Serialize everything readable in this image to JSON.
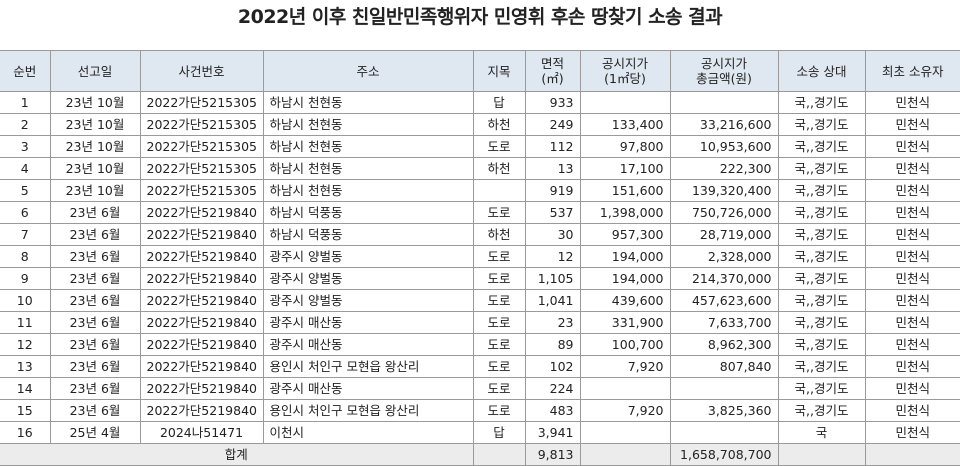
{
  "title": "2022년 이후 친일반민족행위자 민영휘 후손 땅찾기 소송 결과",
  "table": {
    "header": [
      [
        "순번"
      ],
      [
        "선고일"
      ],
      [
        "사건번호"
      ],
      [
        "주소"
      ],
      [
        "지목"
      ],
      [
        "면적",
        "(㎡)"
      ],
      [
        "공시지가",
        "(1㎡당)"
      ],
      [
        "공시지가",
        "총금액(원)"
      ],
      [
        "소송 상대"
      ],
      [
        "최초 소유자"
      ]
    ],
    "rows": [
      [
        "1",
        "23년 10월",
        "2022가단5215305",
        "하남시 천현동",
        "답",
        "933",
        null,
        null,
        "국,,경기도",
        "민천식"
      ],
      [
        "2",
        "23년 10월",
        "2022가단5215305",
        "하남시 천현동",
        "하천",
        "249",
        "133,400",
        "33,216,600",
        "국,,경기도",
        "민천식"
      ],
      [
        "3",
        "23년 10월",
        "2022가단5215305",
        "하남시 천현동",
        "도로",
        "112",
        "97,800",
        "10,953,600",
        "국,,경기도",
        "민천식"
      ],
      [
        "4",
        "23년 10월",
        "2022가단5215305",
        "하남시 천현동",
        "하천",
        "13",
        "17,100",
        "222,300",
        "국,,경기도",
        "민천식"
      ],
      [
        "5",
        "23년 10월",
        "2022가단5215305",
        "하남시 천현동",
        null,
        "919",
        "151,600",
        "139,320,400",
        "국,,경기도",
        "민천식"
      ],
      [
        "6",
        "23년 6월",
        "2022가단5219840",
        "하남시 덕풍동",
        "도로",
        "537",
        "1,398,000",
        "750,726,000",
        "국,,경기도",
        "민천식"
      ],
      [
        "7",
        "23년 6월",
        "2022가단5219840",
        "하남시 덕풍동",
        "하천",
        "30",
        "957,300",
        "28,719,000",
        "국,,경기도",
        "민천식"
      ],
      [
        "8",
        "23년 6월",
        "2022가단5219840",
        "광주시 양벌동",
        "도로",
        "12",
        "194,000",
        "2,328,000",
        "국,,경기도",
        "민천식"
      ],
      [
        "9",
        "23년 6월",
        "2022가단5219840",
        "광주시 양벌동",
        "도로",
        "1,105",
        "194,000",
        "214,370,000",
        "국,,경기도",
        "민천식"
      ],
      [
        "10",
        "23년 6월",
        "2022가단5219840",
        "광주시 양벌동",
        "도로",
        "1,041",
        "439,600",
        "457,623,600",
        "국,,경기도",
        "민천식"
      ],
      [
        "11",
        "23년 6월",
        "2022가단5219840",
        "광주시 매산동",
        "도로",
        "23",
        "331,900",
        "7,633,700",
        "국,,경기도",
        "민천식"
      ],
      [
        "12",
        "23년 6월",
        "2022가단5219840",
        "광주시 매산동",
        "도로",
        "89",
        "100,700",
        "8,962,300",
        "국,,경기도",
        "민천식"
      ],
      [
        "13",
        "23년 6월",
        "2022가단5219840",
        "용인시 처인구 모현읍 왕산리",
        "도로",
        "102",
        "7,920",
        "807,840",
        "국,,경기도",
        "민천식"
      ],
      [
        "14",
        "23년 6월",
        "2022가단5219840",
        "광주시 매산동",
        "도로",
        "224",
        null,
        null,
        "국,,경기도",
        "민천식"
      ],
      [
        "15",
        "23년 6월",
        "2022가단5219840",
        "용인시 처인구 모현읍 왕산리",
        "도로",
        "483",
        "7,920",
        "3,825,360",
        "국,,경기도",
        "민천식"
      ],
      [
        "16",
        "25년 4월",
        "2024나51471",
        "이천시",
        "답",
        "3,941",
        null,
        null,
        "국",
        "민천식"
      ]
    ],
    "total": {
      "label": "합계",
      "area": "9,813",
      "amount": "1,658,708,700"
    }
  }
}
